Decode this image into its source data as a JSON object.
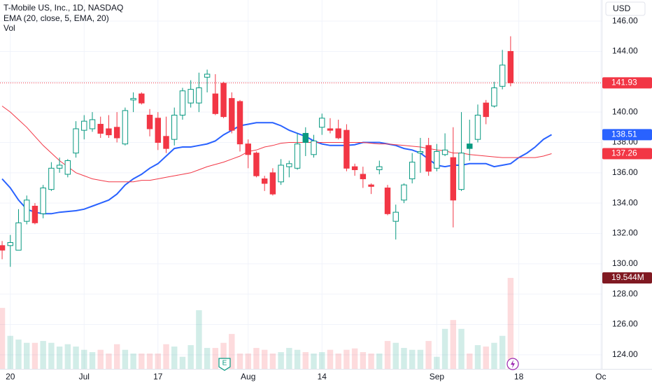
{
  "chart_data": {
    "type": "candlestick",
    "title": "T-Mobile US, Inc., 1D, NASDAQ",
    "currency": "USD",
    "xlim": [
      -0.26,
      73.1
    ],
    "xticks": [
      {
        "value": 1,
        "label": "20"
      },
      {
        "value": 10,
        "label": "Jul"
      },
      {
        "value": 19,
        "label": "17"
      },
      {
        "value": 30,
        "label": "Aug"
      },
      {
        "value": 39,
        "label": "14"
      },
      {
        "value": 53,
        "label": "Sep"
      },
      {
        "value": 63,
        "label": "18"
      },
      {
        "value": 73,
        "label": "Oc"
      }
    ],
    "ylim": [
      123.07,
      147.39
    ],
    "yticks": [
      {
        "value": 124,
        "label": "124.00"
      },
      {
        "value": 126,
        "label": "126.00"
      },
      {
        "value": 128,
        "label": "128.00"
      },
      {
        "value": 130,
        "label": "130.00"
      },
      {
        "value": 132,
        "label": "132.00"
      },
      {
        "value": 134,
        "label": "134.00"
      },
      {
        "value": 136,
        "label": "136.00"
      },
      {
        "value": 138,
        "label": "138.00"
      },
      {
        "value": 140,
        "label": "140.00"
      },
      {
        "value": 142,
        "label": "142.00"
      },
      {
        "value": 144,
        "label": "144.00"
      },
      {
        "value": 146,
        "label": "146.00"
      }
    ],
    "grid": true,
    "up_color": "#089981",
    "down_color": "#f23645",
    "candles": {
      "open": [
        131.2,
        131.2,
        130.9,
        132.8,
        133.8,
        133.3,
        134.9,
        136.3,
        135.9,
        137.3,
        138.8,
        138.9,
        139.2,
        138.9,
        139.0,
        137.9,
        140.8,
        141.2,
        139.8,
        139.6,
        138.4,
        138.2,
        139.8,
        140.6,
        140.6,
        142.3,
        141.2,
        141.9,
        140.9,
        140.7,
        137.9,
        137.3,
        135.6,
        136.0,
        135.4,
        136.4,
        136.3,
        138.6,
        137.2,
        139.0,
        138.9,
        138.9,
        138.8,
        136.4,
        135.9,
        135.2,
        136.2,
        135.0,
        132.8,
        134.2,
        135.6,
        137.3,
        137.8,
        136.3,
        137.2,
        137.0,
        134.9,
        137.9,
        138.2,
        140.6,
        140.4,
        141.7,
        144.0
      ],
      "high": [
        131.5,
        131.9,
        133.6,
        134.5,
        134.0,
        135.2,
        136.7,
        137.0,
        136.9,
        139.4,
        139.8,
        140.0,
        139.7,
        139.8,
        140.0,
        140.3,
        141.3,
        141.3,
        140.2,
        140.0,
        139.7,
        140.3,
        141.6,
        142.1,
        142.6,
        142.8,
        142.5,
        142.0,
        141.3,
        140.8,
        138.2,
        137.4,
        135.8,
        136.3,
        136.9,
        136.8,
        138.6,
        139.0,
        138.5,
        139.9,
        139.6,
        139.5,
        139.2,
        136.6,
        136.4,
        135.3,
        136.8,
        135.2,
        133.9,
        135.3,
        137.3,
        138.3,
        138.3,
        137.9,
        138.6,
        139.0,
        140.0,
        139.5,
        140.5,
        140.8,
        142.0,
        144.1,
        145.0
      ],
      "low": [
        130.3,
        129.8,
        130.9,
        132.6,
        132.6,
        133.0,
        134.8,
        136.0,
        135.7,
        137.0,
        138.2,
        138.7,
        138.3,
        138.3,
        138.0,
        137.8,
        140.0,
        140.5,
        138.4,
        137.5,
        137.3,
        137.8,
        139.5,
        140.3,
        140.0,
        141.3,
        139.8,
        139.6,
        138.6,
        137.4,
        136.3,
        135.7,
        134.8,
        134.5,
        135.2,
        135.7,
        136.2,
        137.1,
        137.0,
        138.5,
        138.6,
        138.2,
        136.1,
        135.8,
        135.0,
        134.6,
        135.9,
        133.2,
        131.6,
        134.0,
        135.3,
        136.0,
        135.8,
        136.1,
        137.1,
        132.4,
        134.8,
        136.8,
        138.0,
        139.2,
        140.3,
        141.5,
        141.7
      ],
      "close": [
        130.9,
        131.4,
        132.7,
        134.2,
        132.7,
        135.0,
        136.3,
        136.5,
        136.8,
        138.9,
        139.4,
        139.5,
        138.6,
        138.5,
        138.3,
        140.1,
        140.9,
        140.6,
        138.9,
        138.0,
        137.6,
        139.8,
        141.4,
        141.5,
        141.6,
        142.5,
        139.9,
        139.7,
        138.8,
        137.9,
        137.2,
        135.8,
        135.3,
        134.6,
        136.5,
        136.6,
        137.9,
        138.0,
        138.1,
        139.6,
        138.8,
        138.3,
        136.3,
        136.2,
        135.6,
        135.1,
        136.4,
        133.3,
        133.4,
        135.2,
        136.7,
        137.4,
        136.1,
        137.4,
        137.5,
        134.2,
        137.3,
        137.6,
        139.8,
        139.7,
        141.6,
        143.1,
        141.93
      ],
      "last_label": "141.93"
    },
    "indicators": [
      {
        "name": "EMA (20, close, 5, EMA, 20)",
        "lines": [
          {
            "color": "#2962ff",
            "values": [
              135.6,
              135.0,
              134.2,
              133.6,
              133.4,
              133.3,
              133.3,
              133.4,
              133.45,
              133.5,
              133.6,
              133.8,
              134.0,
              134.2,
              134.6,
              135.2,
              135.6,
              135.9,
              136.3,
              136.6,
              137.1,
              137.6,
              137.7,
              137.7,
              137.8,
              137.9,
              138.1,
              138.5,
              138.8,
              139.1,
              139.2,
              139.3,
              139.3,
              139.3,
              139.1,
              138.8,
              138.6,
              138.4,
              138.1,
              137.9,
              137.8,
              137.8,
              137.8,
              137.85,
              138.0,
              138.0,
              138.0,
              137.9,
              137.8,
              137.6,
              137.5,
              137.3,
              136.9,
              136.5,
              136.4,
              136.5,
              136.5,
              136.6,
              136.6,
              136.6,
              136.4,
              136.5,
              136.6,
              137.0,
              137.3,
              137.7,
              138.2,
              138.51
            ],
            "last_label": "138.51"
          },
          {
            "color": "#f23645",
            "values": [
              140.4,
              140.0,
              139.5,
              139.0,
              138.4,
              137.8,
              137.3,
              136.8,
              136.4,
              136.0,
              135.8,
              135.6,
              135.5,
              135.4,
              135.4,
              135.4,
              135.4,
              135.5,
              135.5,
              135.6,
              135.7,
              135.8,
              135.9,
              136.0,
              136.2,
              136.4,
              136.55,
              136.7,
              136.9,
              137.1,
              137.4,
              137.5,
              137.7,
              137.8,
              137.95,
              138.0,
              138.0,
              138.0,
              138.0,
              138.0,
              138.0,
              138.0,
              138.0,
              138.0,
              138.0,
              137.95,
              137.9,
              137.9,
              137.85,
              137.8,
              137.75,
              137.7,
              137.6,
              137.5,
              137.45,
              137.3,
              137.3,
              137.2,
              137.15,
              137.1,
              137.05,
              137.0,
              137.0,
              137.0,
              137.0,
              137.0,
              137.1,
              137.26
            ],
            "last_label": "137.26"
          }
        ]
      }
    ],
    "volume": {
      "name": "Vol",
      "ylim": [
        0,
        79.2
      ],
      "values": [
        13.1,
        7.1,
        6.3,
        5.6,
        5.6,
        6.0,
        5.6,
        4.8,
        5.3,
        4.8,
        4.1,
        3.6,
        4.1,
        3.3,
        5.3,
        4.1,
        3.3,
        3.3,
        3.3,
        3.3,
        5.3,
        4.8,
        2.6,
        5.1,
        12.6,
        4.5,
        4.5,
        5.6,
        7.5,
        3.3,
        3.3,
        4.5,
        4.1,
        3.3,
        3.6,
        4.5,
        4.1,
        3.6,
        3.3,
        3.6,
        4.1,
        3.3,
        4.1,
        4.4,
        3.6,
        3.3,
        3.3,
        6.0,
        5.6,
        4.5,
        4.1,
        4.1,
        6.0,
        2.6,
        8.6,
        10.5,
        8.6,
        3.3,
        5.1,
        4.8,
        5.6,
        7.1,
        19.544
      ],
      "last_label": "19.544M",
      "label_color": "#801922"
    }
  }
}
